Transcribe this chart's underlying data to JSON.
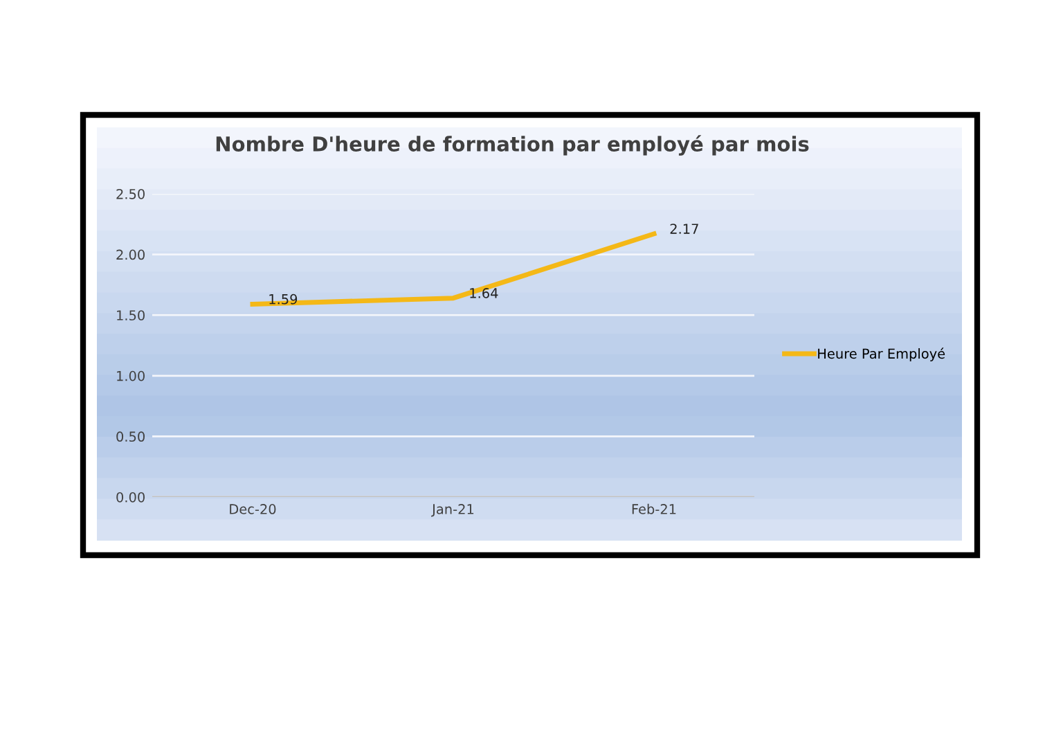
{
  "chart_data": {
    "type": "line",
    "title": "Nombre D'heure de formation par employé par mois",
    "categories": [
      "Dec-20",
      "Jan-21",
      "Feb-21"
    ],
    "series": [
      {
        "name": "Heure Par Employé",
        "color": "#f4b817",
        "values": [
          1.59,
          1.64,
          2.17
        ]
      }
    ],
    "ylim": [
      0,
      2.5
    ],
    "yticks": [
      {
        "value": 0,
        "label": "0.00"
      },
      {
        "value": 0.5,
        "label": "0.50"
      },
      {
        "value": 1,
        "label": "1.00"
      },
      {
        "value": 1.5,
        "label": "1.50"
      },
      {
        "value": 2,
        "label": "2.00"
      },
      {
        "value": 2.5,
        "label": "2.50"
      }
    ],
    "grid": "y",
    "legend": "right",
    "data_labels": true,
    "marker": "none",
    "line_style": "solid"
  }
}
